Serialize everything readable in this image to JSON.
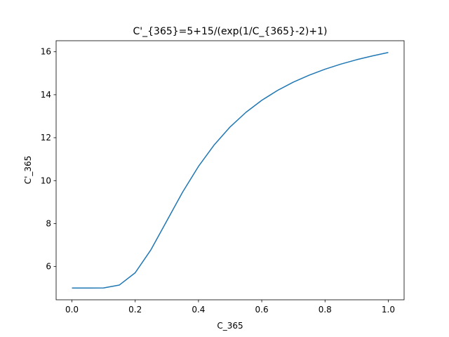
{
  "chart_data": {
    "type": "line",
    "title": "C'_{365}=5+15/(exp(1/C_{365}-2)+1)",
    "x_label": "C_365",
    "y_label": "C'_365",
    "x": [
      0,
      0.05,
      0.1,
      0.15,
      0.2,
      0.25,
      0.3,
      0.35,
      0.4,
      0.45,
      0.5,
      0.55,
      0.6,
      0.65,
      0.7,
      0.75,
      0.8,
      0.85,
      0.9,
      0.95,
      1
    ],
    "series": [
      {
        "color": "#1f77b4",
        "values": [
          5,
          5,
          5.005,
          5.14,
          5.711,
          6.788,
          8.129,
          9.47,
          10.663,
          11.67,
          12.5,
          13.18,
          13.739,
          14.201,
          14.587,
          14.911,
          15.188,
          15.425,
          15.63,
          15.808,
          15.966
        ]
      }
    ],
    "xlim": [
      -0.05,
      1.05
    ],
    "xticks": [
      {
        "value": 0,
        "label": "0.0"
      },
      {
        "value": 0.2,
        "label": "0.2"
      },
      {
        "value": 0.4,
        "label": "0.4"
      },
      {
        "value": 0.6,
        "label": "0.6"
      },
      {
        "value": 0.8,
        "label": "0.8"
      },
      {
        "value": 1,
        "label": "1.0"
      }
    ],
    "ylim": [
      4.452,
      16.514
    ],
    "yticks": [
      6,
      8,
      10,
      12,
      14,
      16
    ]
  }
}
